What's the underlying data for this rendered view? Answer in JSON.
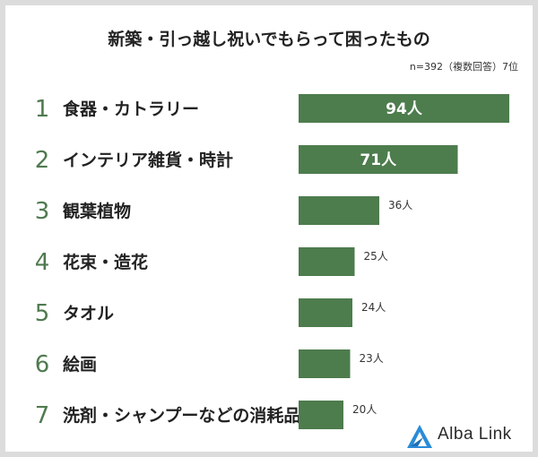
{
  "chart_data": {
    "type": "bar",
    "orientation": "horizontal",
    "title": "新築・引っ越し祝いでもらって困ったもの",
    "note": "n=392（複数回答）7位",
    "ranks": [
      "1",
      "2",
      "3",
      "4",
      "5",
      "6",
      "7"
    ],
    "categories": [
      "食器・カトラリー",
      "インテリア雑貨・時計",
      "観葉植物",
      "花束・造花",
      "タオル",
      "絵画",
      "洗剤・シャンプーなどの消耗品"
    ],
    "values": [
      94,
      71,
      36,
      25,
      24,
      23,
      20
    ],
    "value_labels": [
      "94人",
      "71人",
      "36人",
      "25人",
      "24人",
      "23人",
      "20人"
    ],
    "xlim": [
      0,
      94
    ],
    "grid": false,
    "legend": "none",
    "bar_color": "#4d7c4d"
  },
  "brand": {
    "name": "Alba Link"
  },
  "colors": {
    "rank": "#4f7a4f",
    "logo": "#2a8bd8",
    "border": "#dcdcdc"
  }
}
